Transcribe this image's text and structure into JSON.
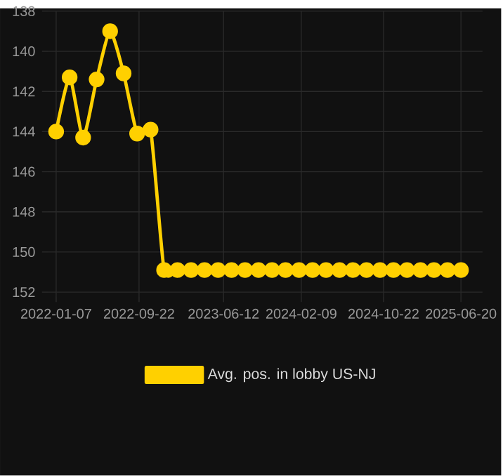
{
  "chart_data": {
    "type": "line",
    "x": [
      "2022-01-07",
      "2022-02-18",
      "2022-04-01",
      "2022-05-13",
      "2022-06-24",
      "2022-08-05",
      "2022-09-16",
      "2022-10-28",
      "2022-12-09",
      "2023-01-20",
      "2023-03-03",
      "2023-04-14",
      "2023-05-26",
      "2023-07-07",
      "2023-08-18",
      "2023-09-29",
      "2023-11-10",
      "2023-12-22",
      "2024-02-02",
      "2024-03-15",
      "2024-04-26",
      "2024-06-07",
      "2024-07-19",
      "2024-08-30",
      "2024-10-11",
      "2024-11-22",
      "2025-01-03",
      "2025-02-14",
      "2025-03-28",
      "2025-05-09",
      "2025-06-20"
    ],
    "series": [
      {
        "name": "Avg. pos. in lobby US-NJ",
        "color": "#ffd000",
        "values": [
          144.0,
          141.3,
          144.3,
          141.4,
          139.0,
          141.1,
          144.1,
          143.9,
          150.9,
          150.9,
          150.9,
          150.9,
          150.9,
          150.9,
          150.9,
          150.9,
          150.9,
          150.9,
          150.9,
          150.9,
          150.9,
          150.9,
          150.9,
          150.9,
          150.9,
          150.9,
          150.9,
          150.9,
          150.9,
          150.9,
          150.9
        ]
      }
    ],
    "xlim": [
      "2021-11-24",
      "2025-08-26"
    ],
    "xticks": [
      "2022-01-07",
      "2022-09-22",
      "2023-06-12",
      "2024-02-09",
      "2024-10-22",
      "2025-06-20"
    ],
    "ylim": [
      152.5,
      138
    ],
    "yticks": [
      138,
      140,
      142,
      144,
      146,
      148,
      150,
      152
    ],
    "grid": true,
    "legend": "bottom",
    "marker": "circle",
    "line_style": "solid"
  }
}
